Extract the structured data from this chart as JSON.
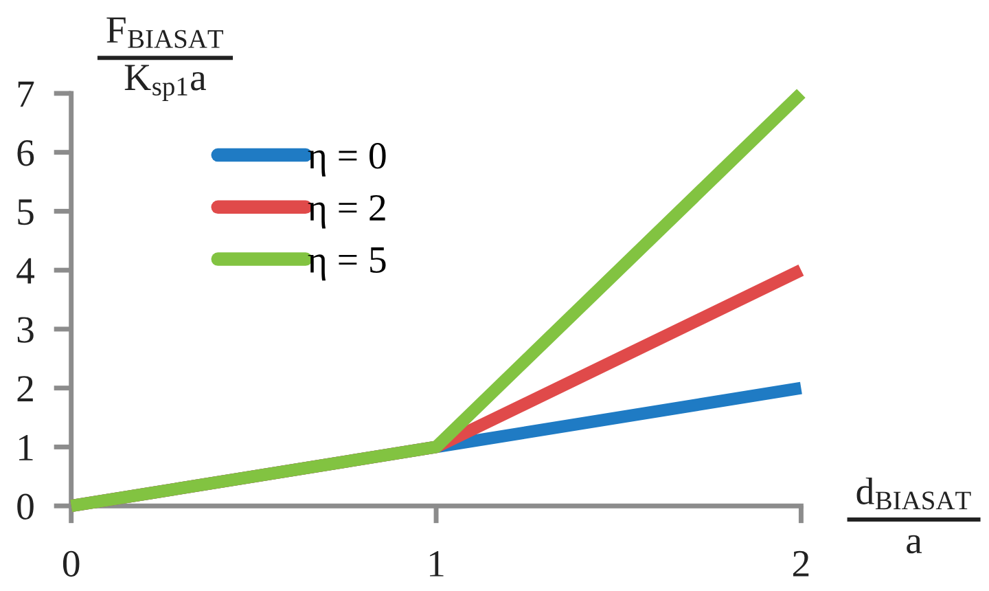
{
  "chart_data": {
    "type": "line",
    "xlabel": "d$_{BIASAT}$\na",
    "ylabel": "F$_{BIASAT}$\nK$_{sp1}$a",
    "x": [
      0,
      1,
      2
    ],
    "series": [
      {
        "name": "η = 0",
        "color": "#1f7bc4",
        "values": [
          0,
          1,
          2
        ]
      },
      {
        "name": "η = 2",
        "color": "#e04a4a",
        "values": [
          0,
          1,
          4
        ]
      },
      {
        "name": "η = 5",
        "color": "#82c341",
        "values": [
          0,
          1,
          7
        ]
      }
    ],
    "xlim": [
      0,
      2
    ],
    "ylim": [
      0,
      7
    ],
    "xticks": [
      0,
      1,
      2
    ],
    "yticks": [
      0,
      1,
      2,
      3,
      4,
      5,
      6,
      7
    ],
    "legend": "top left",
    "grid": false,
    "marker": "none",
    "line_style": "solid"
  }
}
